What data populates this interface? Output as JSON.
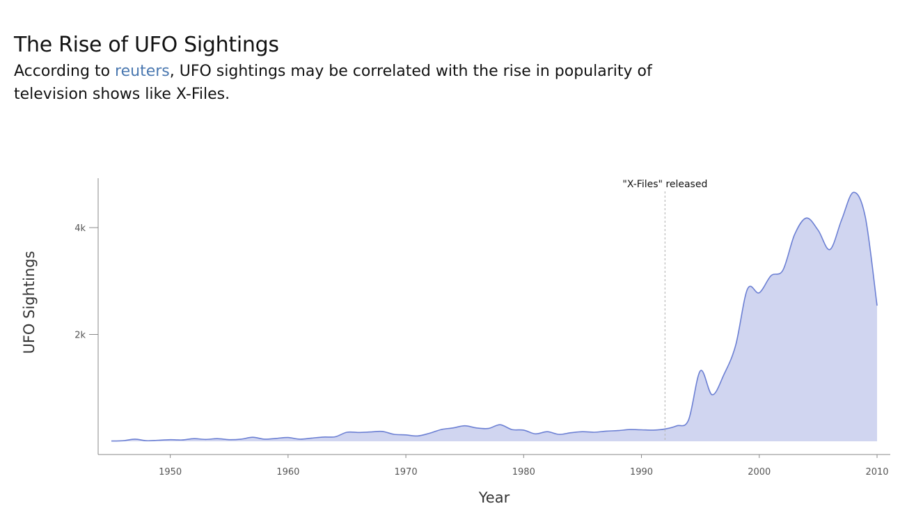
{
  "header": {
    "title": "The Rise of UFO Sightings",
    "subtitle_before": "According to ",
    "subtitle_link": "reuters",
    "subtitle_after": ", UFO sightings may be correlated with the rise in popularity of television shows like X-Files."
  },
  "chart_data": {
    "type": "area",
    "xlabel": "Year",
    "ylabel": "UFO Sightings",
    "xlim": [
      1944,
      2011
    ],
    "ylim": [
      -100,
      4820
    ],
    "x_ticks": [
      1950,
      1960,
      1970,
      1980,
      1990,
      2000,
      2010
    ],
    "x_tick_labels": [
      "1950",
      "1960",
      "1970",
      "1980",
      "1990",
      "2000",
      "2010"
    ],
    "y_ticks": [
      2000,
      4000
    ],
    "y_tick_labels": [
      "2k",
      "4k"
    ],
    "grid": false,
    "legend": "none",
    "colors": {
      "line": "#6b7fd3",
      "fill": "#d0d5f0",
      "annotation_line": "#bbbbbb"
    },
    "annotation": {
      "x": 1992,
      "label": "\"X-Files\" released"
    },
    "series": [
      {
        "x": [
          1945,
          1946,
          1947,
          1948,
          1949,
          1950,
          1951,
          1952,
          1953,
          1954,
          1955,
          1956,
          1957,
          1958,
          1959,
          1960,
          1961,
          1962,
          1963,
          1964,
          1965,
          1966,
          1967,
          1968,
          1969,
          1970,
          1971,
          1972,
          1973,
          1974,
          1975,
          1976,
          1977,
          1978,
          1979,
          1980,
          1981,
          1982,
          1983,
          1984,
          1985,
          1986,
          1987,
          1988,
          1989,
          1990,
          1991,
          1992,
          1993,
          1994,
          1995,
          1996,
          1997,
          1998,
          1999,
          2000,
          2001,
          2002,
          2003,
          2004,
          2005,
          2006,
          2007,
          2008,
          2009,
          2010
        ],
        "values": [
          5,
          10,
          40,
          10,
          20,
          30,
          25,
          50,
          35,
          50,
          30,
          40,
          75,
          40,
          55,
          70,
          40,
          60,
          80,
          85,
          170,
          165,
          175,
          185,
          130,
          120,
          100,
          150,
          220,
          250,
          290,
          250,
          240,
          310,
          220,
          210,
          140,
          180,
          130,
          160,
          180,
          170,
          190,
          200,
          220,
          215,
          210,
          230,
          290,
          400,
          1320,
          870,
          1250,
          1800,
          2850,
          2780,
          3100,
          3200,
          3870,
          4180,
          3950,
          3590,
          4150,
          4660,
          4200,
          2540
        ]
      }
    ]
  }
}
